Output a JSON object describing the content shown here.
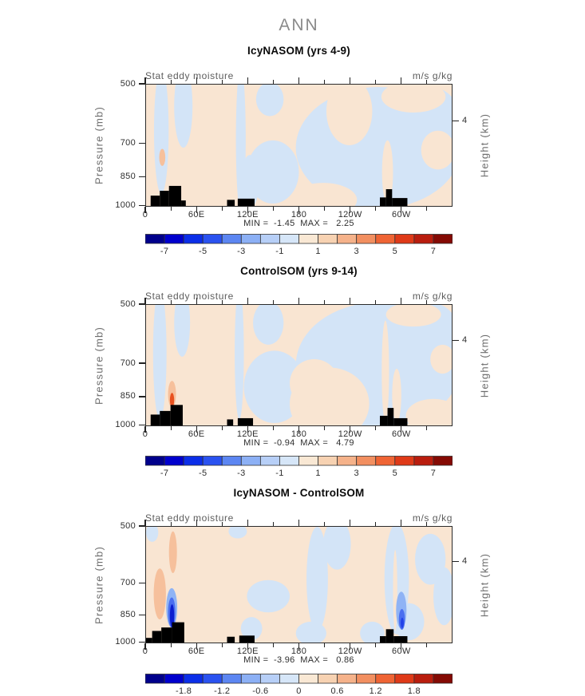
{
  "page": {
    "title": "ANN",
    "background": "#ffffff",
    "title_color": "#8a8a8a"
  },
  "shared": {
    "left_axis_label": "Pressure (mb)",
    "right_axis_label": "Height (km)",
    "stat_label": "Stat eddy moisture",
    "units_label": "m/s g/kg",
    "x_tick_labels": [
      "0",
      "60E",
      "120E",
      "180",
      "120W",
      "60W"
    ],
    "x_major_u": [
      0,
      0.1667,
      0.3333,
      0.5,
      0.6667,
      0.8333
    ],
    "x_minor_u": [
      0.0833,
      0.25,
      0.4167,
      0.5833,
      0.75,
      0.9167
    ],
    "pressure_ticks": [
      {
        "label": "500",
        "v": 0.0
      },
      {
        "label": "700",
        "v": 0.484
      },
      {
        "label": "850",
        "v": 0.758
      },
      {
        "label": "1000",
        "v": 0.991
      }
    ],
    "height_ticks": [
      {
        "label": "4",
        "v": 0.3
      }
    ],
    "colors": {
      "blue": "#d3e4f7",
      "peach": "#f9e5d2",
      "salmon": "#f6c09c",
      "topo": "#000000",
      "frame": "#2b2b2b"
    },
    "palette16": [
      "#00008b",
      "#0000cd",
      "#0b2ee8",
      "#2a52f0",
      "#5c86f2",
      "#8cb0f5",
      "#b7cff7",
      "#d6e6f8",
      "#f9e8d4",
      "#f7d2b2",
      "#f5b28a",
      "#f28f60",
      "#ef6434",
      "#df3a18",
      "#b91d0e",
      "#840a04"
    ]
  },
  "chart_data": [
    {
      "type": "filled-contour",
      "title": "IcyNASOM (yrs 4-9)",
      "field": "Stat eddy moisture",
      "units": "m/s g/kg",
      "min": -1.45,
      "max": 2.25,
      "minmax_text": "MIN =  -1.45  MAX =   2.25",
      "x_axis": {
        "ticks": [
          "0",
          "60E",
          "120E",
          "180",
          "120W",
          "60W"
        ],
        "range_deg": [
          0,
          360
        ]
      },
      "y_axis": {
        "label": "Pressure (mb)",
        "ticks": [
          500,
          700,
          850,
          1000
        ],
        "scale": "log"
      },
      "y2_axis": {
        "label": "Height (km)",
        "ticks": [
          4
        ]
      },
      "colorbar": {
        "range": [
          -8,
          8
        ],
        "ticks": [
          -7,
          -5,
          -3,
          -1,
          1,
          3,
          5,
          7
        ],
        "n_segments": 16
      },
      "regions": [
        {
          "c": "blue",
          "cx": 0.05,
          "cy": 0.38,
          "rx": 0.024,
          "ry": 0.52
        },
        {
          "c": "blue",
          "cx": 0.122,
          "cy": 0.18,
          "rx": 0.03,
          "ry": 0.34
        },
        {
          "c": "blue",
          "cx": 0.31,
          "cy": 0.45,
          "rx": 0.016,
          "ry": 0.6
        },
        {
          "c": "blue",
          "cx": 0.34,
          "cy": 0.8,
          "rx": 0.03,
          "ry": 0.22
        },
        {
          "c": "blue",
          "cx": 0.415,
          "cy": 0.72,
          "rx": 0.085,
          "ry": 0.26
        },
        {
          "c": "blue",
          "cx": 0.405,
          "cy": 0.12,
          "rx": 0.045,
          "ry": 0.14
        },
        {
          "c": "blue",
          "cx": 0.76,
          "cy": 0.52,
          "rx": 0.27,
          "ry": 0.5
        },
        {
          "c": "blue",
          "cx": 0.93,
          "cy": 0.3,
          "rx": 0.1,
          "ry": 0.28
        },
        {
          "c": "peach",
          "cx": 0.875,
          "cy": 0.1,
          "rx": 0.105,
          "ry": 0.13
        },
        {
          "c": "peach",
          "cx": 0.955,
          "cy": 0.54,
          "rx": 0.055,
          "ry": 0.16
        },
        {
          "c": "peach",
          "cx": 0.665,
          "cy": 0.22,
          "rx": 0.075,
          "ry": 0.28
        },
        {
          "c": "peach",
          "cx": 0.79,
          "cy": 0.72,
          "rx": 0.018,
          "ry": 0.26
        },
        {
          "c": "peach",
          "cx": 0.58,
          "cy": 0.95,
          "rx": 0.11,
          "ry": 0.14
        },
        {
          "c": "salmon",
          "cx": 0.053,
          "cy": 0.6,
          "rx": 0.01,
          "ry": 0.07
        }
      ],
      "topography": [
        [
          0.015,
          0.045,
          0.915
        ],
        [
          0.045,
          0.075,
          0.875
        ],
        [
          0.075,
          0.115,
          0.835
        ],
        [
          0.115,
          0.13,
          0.955
        ],
        [
          0.265,
          0.29,
          0.95
        ],
        [
          0.3,
          0.355,
          0.94
        ],
        [
          0.765,
          0.785,
          0.93
        ],
        [
          0.785,
          0.805,
          0.862
        ],
        [
          0.805,
          0.855,
          0.935
        ]
      ]
    },
    {
      "type": "filled-contour",
      "title": "ControlSOM (yrs 9-14)",
      "field": "Stat eddy moisture",
      "units": "m/s g/kg",
      "min": -0.94,
      "max": 4.79,
      "minmax_text": "MIN =  -0.94  MAX =   4.79",
      "x_axis": {
        "ticks": [
          "0",
          "60E",
          "120E",
          "180",
          "120W",
          "60W"
        ],
        "range_deg": [
          0,
          360
        ]
      },
      "y_axis": {
        "label": "Pressure (mb)",
        "ticks": [
          500,
          700,
          850,
          1000
        ],
        "scale": "log"
      },
      "y2_axis": {
        "label": "Height (km)",
        "ticks": [
          4
        ]
      },
      "colorbar": {
        "range": [
          -8,
          8
        ],
        "ticks": [
          -7,
          -5,
          -3,
          -1,
          1,
          3,
          5,
          7
        ],
        "n_segments": 16
      },
      "regions": [
        {
          "c": "blue",
          "cx": 0.045,
          "cy": 0.4,
          "rx": 0.022,
          "ry": 0.55
        },
        {
          "c": "blue",
          "cx": 0.118,
          "cy": 0.15,
          "rx": 0.026,
          "ry": 0.28
        },
        {
          "c": "blue",
          "cx": 0.305,
          "cy": 0.4,
          "rx": 0.015,
          "ry": 0.55
        },
        {
          "c": "blue",
          "cx": 0.42,
          "cy": 0.68,
          "rx": 0.1,
          "ry": 0.3
        },
        {
          "c": "blue",
          "cx": 0.4,
          "cy": 0.15,
          "rx": 0.05,
          "ry": 0.18
        },
        {
          "c": "blue",
          "cx": 0.76,
          "cy": 0.5,
          "rx": 0.27,
          "ry": 0.52
        },
        {
          "c": "blue",
          "cx": 0.93,
          "cy": 0.28,
          "rx": 0.1,
          "ry": 0.3
        },
        {
          "c": "peach",
          "cx": 0.875,
          "cy": 0.08,
          "rx": 0.09,
          "ry": 0.1
        },
        {
          "c": "peach",
          "cx": 0.6,
          "cy": 0.82,
          "rx": 0.13,
          "ry": 0.3
        },
        {
          "c": "peach",
          "cx": 0.55,
          "cy": 0.65,
          "rx": 0.08,
          "ry": 0.2
        },
        {
          "c": "peach",
          "cx": 0.783,
          "cy": 0.55,
          "rx": 0.012,
          "ry": 0.42
        },
        {
          "c": "peach",
          "cx": 0.82,
          "cy": 0.75,
          "rx": 0.015,
          "ry": 0.22
        },
        {
          "c": "peach",
          "cx": 0.94,
          "cy": 0.92,
          "rx": 0.09,
          "ry": 0.14
        },
        {
          "c": "peach",
          "cx": 0.97,
          "cy": 0.45,
          "rx": 0.04,
          "ry": 0.12
        },
        {
          "c": "salmon",
          "cx": 0.085,
          "cy": 0.74,
          "rx": 0.013,
          "ry": 0.11
        },
        {
          "c": "#e8511f",
          "cx": 0.085,
          "cy": 0.79,
          "rx": 0.007,
          "ry": 0.06
        }
      ],
      "topography": [
        [
          0.015,
          0.045,
          0.91
        ],
        [
          0.045,
          0.08,
          0.88
        ],
        [
          0.08,
          0.12,
          0.83
        ],
        [
          0.265,
          0.285,
          0.95
        ],
        [
          0.3,
          0.35,
          0.94
        ],
        [
          0.765,
          0.79,
          0.92
        ],
        [
          0.79,
          0.81,
          0.855
        ],
        [
          0.81,
          0.855,
          0.94
        ]
      ]
    },
    {
      "type": "filled-contour",
      "title": "IcyNASOM - ControlSOM",
      "field": "Stat eddy moisture",
      "units": "m/s g/kg",
      "min": -3.96,
      "max": 0.86,
      "minmax_text": "MIN =  -3.96  MAX =   0.86",
      "x_axis": {
        "ticks": [
          "0",
          "60E",
          "120E",
          "180",
          "120W",
          "60W"
        ],
        "range_deg": [
          0,
          360
        ]
      },
      "y_axis": {
        "label": "Pressure (mb)",
        "ticks": [
          500,
          700,
          850,
          1000
        ],
        "scale": "log"
      },
      "y2_axis": {
        "label": "Height (km)",
        "ticks": [
          4
        ]
      },
      "colorbar": {
        "range": [
          -2.4,
          2.4
        ],
        "ticks": [
          -1.8,
          -1.2,
          -0.6,
          0,
          0.6,
          1.2,
          1.8
        ],
        "n_segments": 16
      },
      "regions": [
        {
          "c": "blue",
          "cx": 0.02,
          "cy": 0.05,
          "rx": 0.02,
          "ry": 0.08
        },
        {
          "c": "salmon",
          "cx": 0.045,
          "cy": 0.58,
          "rx": 0.02,
          "ry": 0.22
        },
        {
          "c": "salmon",
          "cx": 0.088,
          "cy": 0.22,
          "rx": 0.013,
          "ry": 0.18
        },
        {
          "c": "blue",
          "cx": 0.3,
          "cy": 0.04,
          "rx": 0.03,
          "ry": 0.06
        },
        {
          "c": "blue",
          "cx": 0.4,
          "cy": 0.6,
          "rx": 0.07,
          "ry": 0.14
        },
        {
          "c": "blue",
          "cx": 0.345,
          "cy": 0.88,
          "rx": 0.035,
          "ry": 0.1
        },
        {
          "c": "blue",
          "cx": 0.56,
          "cy": 0.45,
          "rx": 0.035,
          "ry": 0.45
        },
        {
          "c": "blue",
          "cx": 0.625,
          "cy": 0.15,
          "rx": 0.045,
          "ry": 0.22
        },
        {
          "c": "blue",
          "cx": 0.54,
          "cy": 0.92,
          "rx": 0.05,
          "ry": 0.1
        },
        {
          "c": "blue",
          "cx": 0.82,
          "cy": 0.45,
          "rx": 0.04,
          "ry": 0.48
        },
        {
          "c": "blue",
          "cx": 0.86,
          "cy": 0.82,
          "rx": 0.05,
          "ry": 0.16
        },
        {
          "c": "blue",
          "cx": 0.93,
          "cy": 0.28,
          "rx": 0.05,
          "ry": 0.22
        },
        {
          "c": "blue",
          "cx": 0.975,
          "cy": 0.6,
          "rx": 0.035,
          "ry": 0.25
        },
        {
          "c": "blue",
          "cx": 0.74,
          "cy": 0.92,
          "rx": 0.04,
          "ry": 0.1
        },
        {
          "c": "#8fb3f5",
          "cx": 0.084,
          "cy": 0.7,
          "rx": 0.018,
          "ry": 0.17
        },
        {
          "c": "#4a6ef0",
          "cx": 0.084,
          "cy": 0.74,
          "rx": 0.012,
          "ry": 0.13
        },
        {
          "c": "#0c1ecf",
          "cx": 0.085,
          "cy": 0.77,
          "rx": 0.007,
          "ry": 0.1
        },
        {
          "c": "peach",
          "cx": 0.815,
          "cy": 0.55,
          "rx": 0.007,
          "ry": 0.35
        },
        {
          "c": "#8fb3f5",
          "cx": 0.835,
          "cy": 0.72,
          "rx": 0.017,
          "ry": 0.16
        },
        {
          "c": "#4a6ef0",
          "cx": 0.837,
          "cy": 0.8,
          "rx": 0.01,
          "ry": 0.09
        },
        {
          "c": "#2242e8",
          "cx": 0.838,
          "cy": 0.83,
          "rx": 0.005,
          "ry": 0.045
        }
      ],
      "topography": [
        [
          0.0,
          0.02,
          0.96
        ],
        [
          0.02,
          0.05,
          0.9
        ],
        [
          0.05,
          0.085,
          0.87
        ],
        [
          0.085,
          0.125,
          0.825
        ],
        [
          0.265,
          0.29,
          0.95
        ],
        [
          0.305,
          0.355,
          0.94
        ],
        [
          0.765,
          0.785,
          0.945
        ],
        [
          0.785,
          0.81,
          0.885
        ],
        [
          0.81,
          0.855,
          0.945
        ]
      ]
    }
  ]
}
